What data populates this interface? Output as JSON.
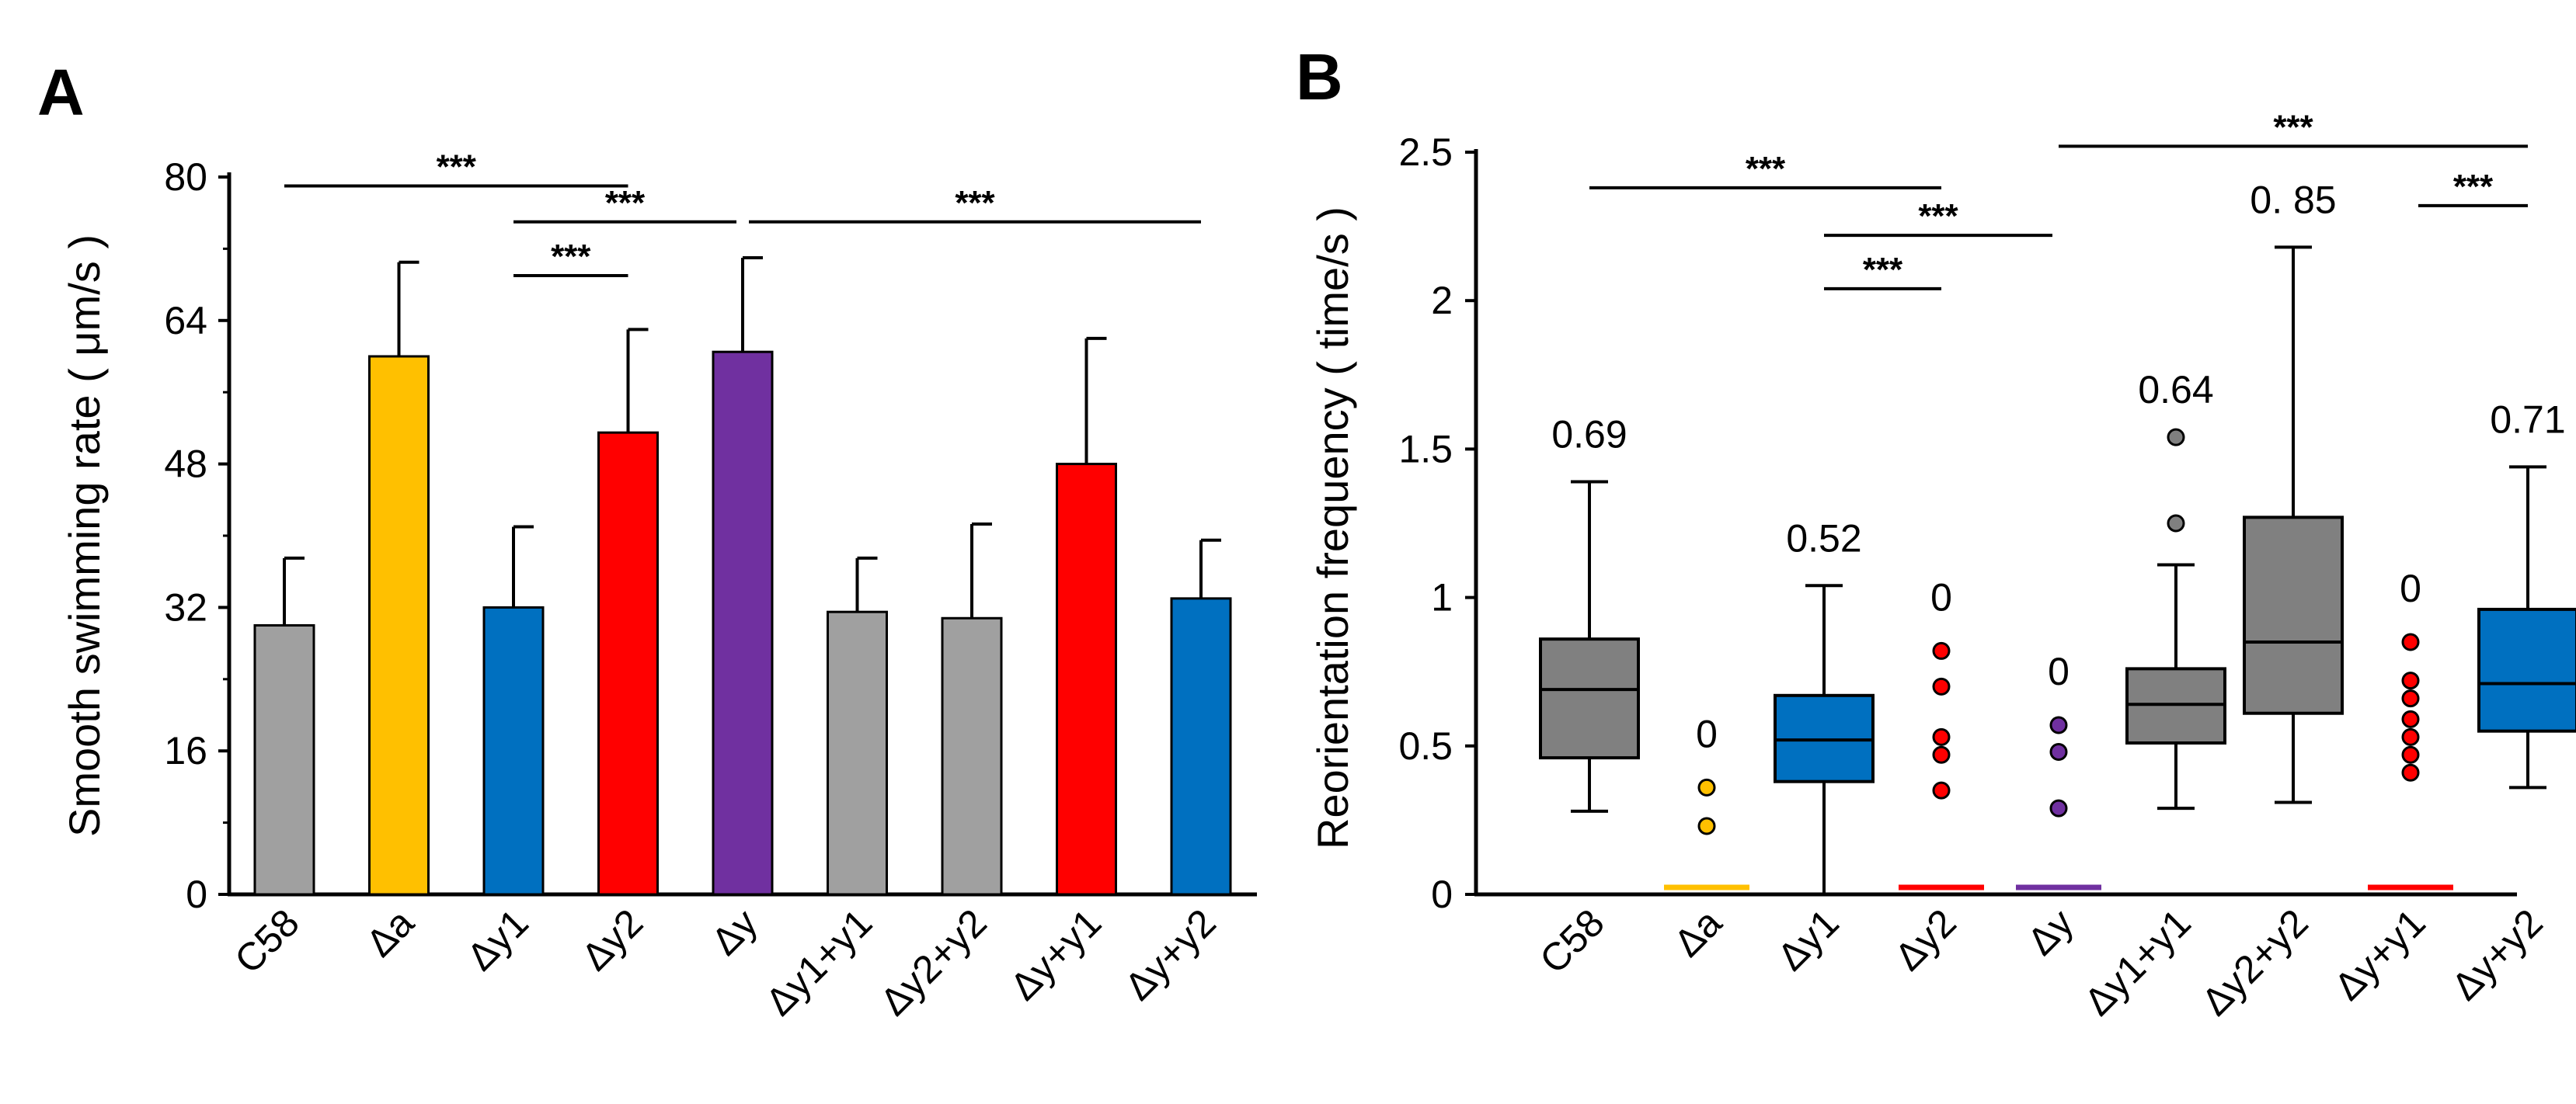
{
  "chart_data": [
    {
      "panel": "A",
      "type": "bar",
      "ylabel": "Smooth swimming rate ( μm/s )",
      "ylim": [
        0,
        80
      ],
      "yticks": [
        0,
        16,
        32,
        48,
        64,
        80
      ],
      "categories": [
        "C58",
        "Δa",
        "Δy1",
        "Δy2",
        "Δy",
        "Δy1+y1",
        "Δy2+y2",
        "Δy+y1",
        "Δy+y2"
      ],
      "values": [
        30,
        60,
        32,
        51.5,
        60.5,
        31.5,
        30.8,
        48,
        33
      ],
      "errors": [
        7.5,
        10.5,
        9,
        11.5,
        10.5,
        6,
        10.5,
        14,
        6.5
      ],
      "colors": [
        "#a0a0a0",
        "#ffc000",
        "#0070c0",
        "#ff0000",
        "#7030a0",
        "#a0a0a0",
        "#a0a0a0",
        "#ff0000",
        "#0070c0"
      ],
      "significance": [
        {
          "from": 0,
          "to": 3,
          "y": 79,
          "label": "***"
        },
        {
          "from": 2,
          "to": 4,
          "y": 75,
          "label": "***"
        },
        {
          "from": 4,
          "to": 8,
          "y": 75,
          "label": "***"
        },
        {
          "from": 2,
          "to": 3,
          "y": 69,
          "label": "***"
        }
      ]
    },
    {
      "panel": "B",
      "type": "box",
      "ylabel": "Reorientation frequency ( time/s )",
      "ylim": [
        0,
        2.5
      ],
      "yticks": [
        0,
        0.5,
        1,
        1.5,
        2,
        2.5
      ],
      "ytick_labels": [
        "0",
        "0.5",
        "1",
        "1.5",
        "2",
        "2.5"
      ],
      "categories": [
        "C58",
        "Δa",
        "Δy1",
        "Δy2",
        "Δy",
        "Δy1+y1",
        "Δy2+y2",
        "Δy+y1",
        "Δy+y2"
      ],
      "colors": [
        "#808080",
        "#ffc000",
        "#0070c0",
        "#ff0000",
        "#7030a0",
        "#808080",
        "#808080",
        "#ff0000",
        "#0070c0"
      ],
      "boxes": [
        {
          "type": "box",
          "whisker_low": 0.28,
          "q1": 0.46,
          "median": 0.69,
          "q3": 0.86,
          "whisker_high": 1.39,
          "outliers": [],
          "median_label": "0.69"
        },
        {
          "type": "flat",
          "outliers": [
            0.36,
            0.23
          ],
          "median_label": "0"
        },
        {
          "type": "box",
          "whisker_low": 0,
          "q1": 0.38,
          "median": 0.52,
          "q3": 0.67,
          "whisker_high": 1.04,
          "outliers": [],
          "median_label": "0.52"
        },
        {
          "type": "flat",
          "outliers": [
            0.82,
            0.7,
            0.53,
            0.47,
            0.35
          ],
          "median_label": "0"
        },
        {
          "type": "flat",
          "outliers": [
            0.57,
            0.48,
            0.29
          ],
          "median_label": "0"
        },
        {
          "type": "box",
          "whisker_low": 0.29,
          "q1": 0.51,
          "median": 0.64,
          "q3": 0.76,
          "whisker_high": 1.11,
          "outliers": [
            1.54,
            1.25
          ],
          "median_label": "0.64"
        },
        {
          "type": "box",
          "whisker_low": 0.31,
          "q1": 0.61,
          "median": 0.85,
          "q3": 1.27,
          "whisker_high": 2.18,
          "outliers": [],
          "median_label": "0. 85"
        },
        {
          "type": "flat",
          "outliers": [
            0.85,
            0.72,
            0.66,
            0.59,
            0.53,
            0.47,
            0.41
          ],
          "median_label": "0"
        },
        {
          "type": "box",
          "whisker_low": 0.36,
          "q1": 0.55,
          "median": 0.71,
          "q3": 0.96,
          "whisker_high": 1.44,
          "outliers": [],
          "median_label": "0.71"
        }
      ],
      "significance": [
        {
          "from": 0,
          "to": 3,
          "y": 2.38,
          "label": "***"
        },
        {
          "from": 2,
          "to": 4,
          "y": 2.22,
          "label": "***"
        },
        {
          "from": 2,
          "to": 3,
          "y": 2.04,
          "label": "***"
        },
        {
          "from": 4,
          "to": 8,
          "y": 2.52,
          "label": "***"
        },
        {
          "from": 7,
          "to": 8,
          "y": 2.32,
          "label": "***"
        }
      ]
    }
  ]
}
